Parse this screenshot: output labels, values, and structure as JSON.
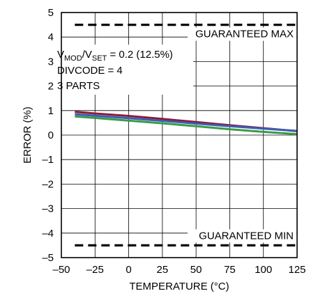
{
  "chart_data": {
    "type": "line",
    "title": "",
    "xlabel": "TEMPERATURE (°C)",
    "ylabel": "ERROR (%)",
    "xlim": [
      -50,
      125
    ],
    "ylim": [
      -5,
      5
    ],
    "x_ticks": [
      "–50",
      "–25",
      "0",
      "25",
      "50",
      "75",
      "100",
      "125"
    ],
    "y_ticks": [
      "5",
      "4",
      "3",
      "2",
      "1",
      "0",
      "–1",
      "–2",
      "–3",
      "–4",
      "–5"
    ],
    "grid": true,
    "annotation": {
      "line1_v1": "V",
      "line1_sub1": "MOD",
      "line1_slash": "/V",
      "line1_sub2": "SET",
      "line1_rest": " = 0.2 (12.5%)",
      "line2": "DIVCODE = 4",
      "line3": "3 PARTS"
    },
    "limits": [
      {
        "label": "GUARANTEED MAX",
        "y": 4.5
      },
      {
        "label": "GUARANTEED MIN",
        "y": -4.5
      }
    ],
    "series": [
      {
        "x": [
          -40,
          -25,
          0,
          25,
          50,
          75,
          100,
          125
        ],
        "y": [
          0.95,
          0.88,
          0.78,
          0.66,
          0.53,
          0.4,
          0.28,
          0.16
        ],
        "color": "#8b1a3a"
      },
      {
        "x": [
          -40,
          -25,
          0,
          25,
          50,
          75,
          100,
          125
        ],
        "y": [
          0.85,
          0.79,
          0.69,
          0.58,
          0.47,
          0.36,
          0.26,
          0.17
        ],
        "color": "#3a5fb0"
      },
      {
        "x": [
          -40,
          -25,
          0,
          25,
          50,
          75,
          100,
          125
        ],
        "y": [
          0.76,
          0.7,
          0.59,
          0.48,
          0.36,
          0.24,
          0.13,
          0.04
        ],
        "color": "#3a9a4a"
      }
    ]
  }
}
